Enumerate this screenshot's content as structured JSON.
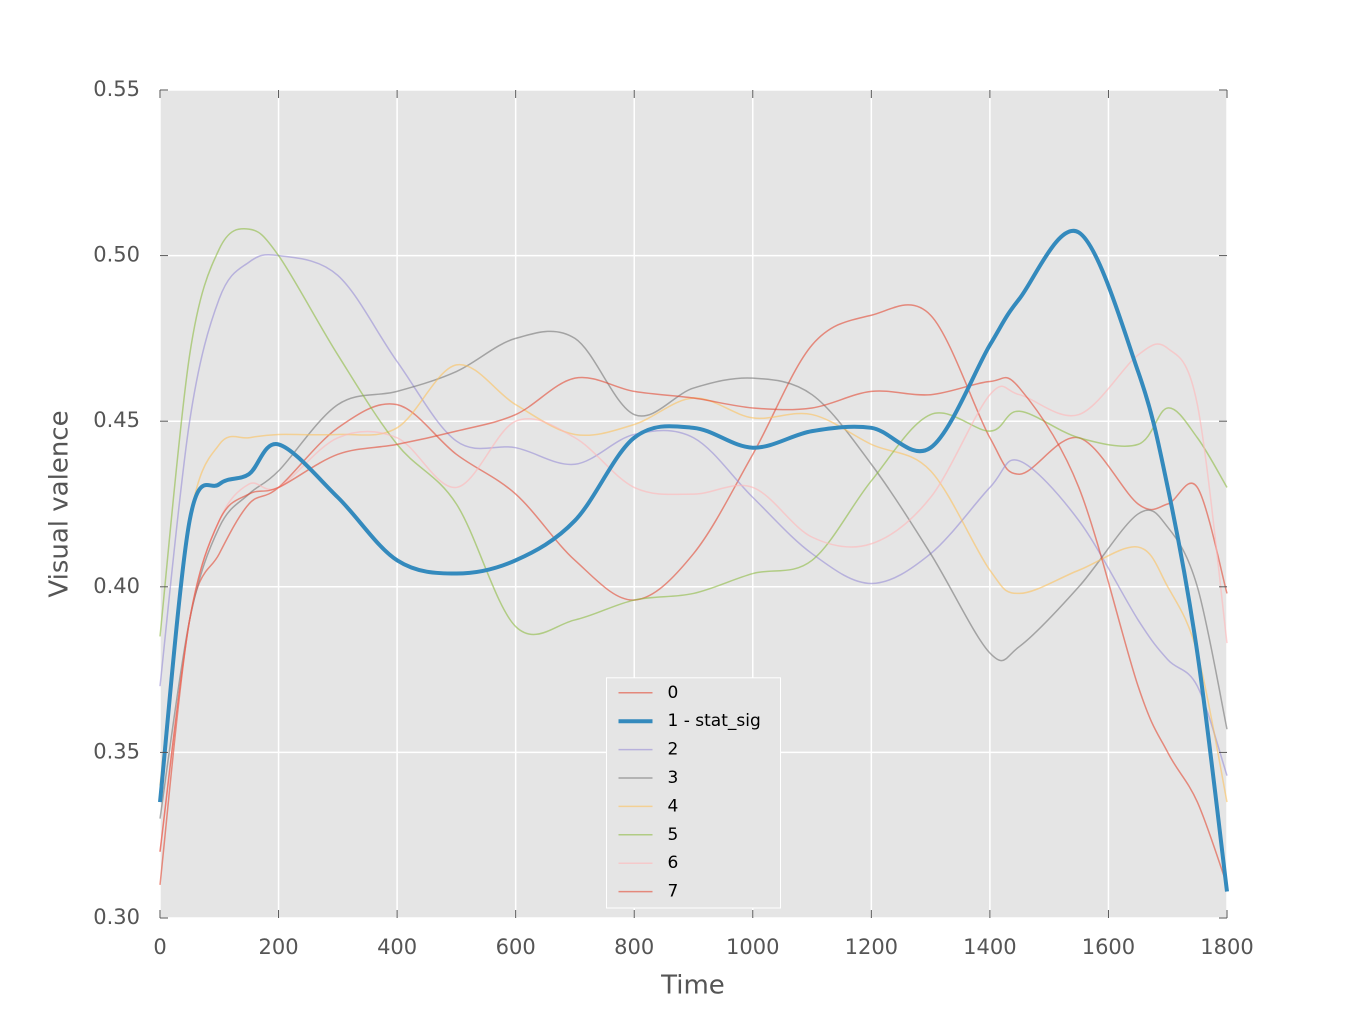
{
  "chart_data": {
    "type": "line",
    "xlabel": "Time",
    "ylabel": "Visual valence",
    "x": [
      0,
      50,
      100,
      150,
      200,
      300,
      400,
      500,
      600,
      700,
      800,
      900,
      1000,
      1100,
      1200,
      1300,
      1400,
      1450,
      1550,
      1650,
      1700,
      1750,
      1800
    ],
    "series": [
      {
        "name": "0",
        "color": "#E24A33",
        "linewidth": 1.5,
        "values": [
          0.31,
          0.39,
          0.41,
          0.425,
          0.43,
          0.448,
          0.455,
          0.44,
          0.428,
          0.408,
          0.396,
          0.41,
          0.44,
          0.473,
          0.482,
          0.482,
          0.445,
          0.434,
          0.445,
          0.425,
          0.425,
          0.43,
          0.398
        ]
      },
      {
        "name": "1 - stat_sig",
        "color": "#348ABD",
        "linewidth": 4,
        "values": [
          0.335,
          0.42,
          0.431,
          0.434,
          0.443,
          0.427,
          0.408,
          0.404,
          0.408,
          0.42,
          0.445,
          0.448,
          0.442,
          0.447,
          0.448,
          0.442,
          0.473,
          0.487,
          0.507,
          0.465,
          0.43,
          0.38,
          0.308
        ]
      },
      {
        "name": "2",
        "color": "#988ED5",
        "linewidth": 1.5,
        "values": [
          0.37,
          0.45,
          0.487,
          0.498,
          0.5,
          0.494,
          0.468,
          0.444,
          0.442,
          0.437,
          0.446,
          0.445,
          0.427,
          0.41,
          0.401,
          0.41,
          0.43,
          0.438,
          0.42,
          0.39,
          0.378,
          0.37,
          0.343
        ]
      },
      {
        "name": "3",
        "color": "#777777",
        "linewidth": 1.5,
        "values": [
          0.33,
          0.39,
          0.418,
          0.428,
          0.435,
          0.455,
          0.459,
          0.465,
          0.475,
          0.475,
          0.452,
          0.46,
          0.463,
          0.458,
          0.437,
          0.41,
          0.38,
          0.382,
          0.4,
          0.422,
          0.418,
          0.4,
          0.357
        ]
      },
      {
        "name": "4",
        "color": "#FBC15E",
        "linewidth": 1.5,
        "values": [
          0.34,
          0.42,
          0.443,
          0.445,
          0.446,
          0.446,
          0.448,
          0.467,
          0.455,
          0.446,
          0.449,
          0.457,
          0.451,
          0.452,
          0.443,
          0.435,
          0.405,
          0.398,
          0.405,
          0.412,
          0.4,
          0.38,
          0.335
        ]
      },
      {
        "name": "5",
        "color": "#8EBA42",
        "linewidth": 1.5,
        "values": [
          0.385,
          0.47,
          0.502,
          0.508,
          0.5,
          0.47,
          0.443,
          0.425,
          0.388,
          0.39,
          0.396,
          0.398,
          0.404,
          0.408,
          0.432,
          0.452,
          0.447,
          0.453,
          0.445,
          0.443,
          0.454,
          0.445,
          0.43
        ]
      },
      {
        "name": "6",
        "color": "#FFB5B8",
        "linewidth": 1.5,
        "values": [
          0.32,
          0.39,
          0.42,
          0.431,
          0.43,
          0.445,
          0.445,
          0.43,
          0.45,
          0.445,
          0.43,
          0.428,
          0.43,
          0.415,
          0.413,
          0.427,
          0.458,
          0.458,
          0.452,
          0.47,
          0.472,
          0.455,
          0.383
        ]
      },
      {
        "name": "7",
        "color": "#E24A33",
        "linewidth": 1.5,
        "values": [
          0.32,
          0.39,
          0.42,
          0.428,
          0.43,
          0.44,
          0.443,
          0.447,
          0.452,
          0.463,
          0.459,
          0.457,
          0.454,
          0.454,
          0.459,
          0.458,
          0.462,
          0.46,
          0.43,
          0.37,
          0.35,
          0.335,
          0.31
        ]
      }
    ],
    "xlim": [
      0,
      1800
    ],
    "xticks": [
      0,
      200,
      400,
      600,
      800,
      1000,
      1200,
      1400,
      1600,
      1800
    ],
    "ylim": [
      0.3,
      0.55
    ],
    "yticks": [
      {
        "value": 0.3,
        "label": "0.30"
      },
      0.35,
      {
        "value": 0.4,
        "label": "0.40"
      },
      0.45,
      {
        "value": 0.5,
        "label": "0.50"
      },
      0.55
    ],
    "grid": true,
    "legend": "lower center"
  }
}
